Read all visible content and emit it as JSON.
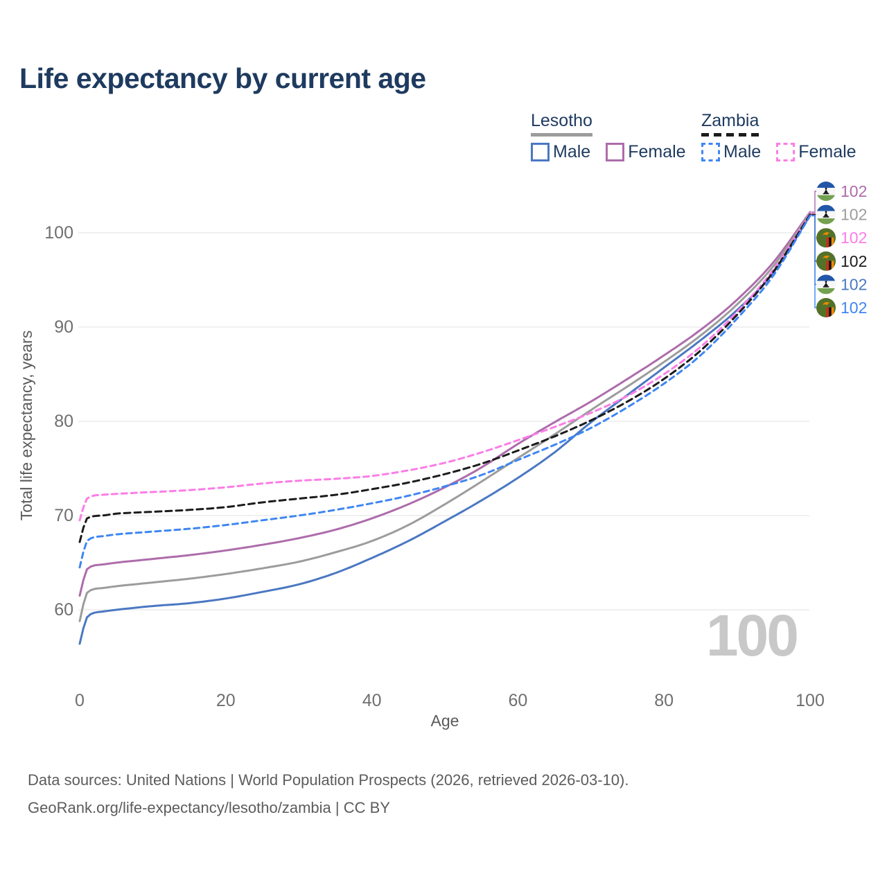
{
  "title": "Life expectancy by current age",
  "legend": {
    "groups": [
      {
        "country": "Lesotho",
        "line_style": "solid",
        "underline_color": "#9c9c9c",
        "items": [
          {
            "label": "Male",
            "color": "#4a78c2"
          },
          {
            "label": "Female",
            "color": "#ad6cab"
          }
        ]
      },
      {
        "country": "Zambia",
        "line_style": "dashed",
        "underline_color": "#1c1c1c",
        "items": [
          {
            "label": "Male",
            "color": "#3f86f2"
          },
          {
            "label": "Female",
            "color": "#fb7de6"
          }
        ]
      }
    ]
  },
  "frame_counter": "100",
  "footer": {
    "line1": "Data sources: United Nations | World Population Prospects (2026, retrieved 2026-03-10).",
    "line2": "GeoRank.org/life-expectancy/lesotho/zambia | CC BY"
  },
  "colors": {
    "title_text": "#1e3a5f",
    "legend_text": "#1e3a5f",
    "tick_text": "#6f6f6f",
    "axis_title_text": "#5a5a5a",
    "grid": "#e7e7e7",
    "watermark": "#c8c8c8",
    "footer_text": "#5c5c5c"
  },
  "chart_data": {
    "type": "line",
    "title": "Life expectancy by current age",
    "xlabel": "Age",
    "ylabel": "Total life expectancy, years",
    "x_ticks": [
      0,
      20,
      40,
      60,
      80,
      100
    ],
    "y_ticks": [
      60,
      70,
      80,
      90,
      100
    ],
    "xlim": [
      0,
      100
    ],
    "ylim": [
      55.5,
      103.5
    ],
    "grid": "horizontal-only",
    "legend_position": "top-right",
    "ages": [
      0,
      1,
      3,
      5,
      10,
      15,
      20,
      25,
      30,
      35,
      40,
      45,
      50,
      55,
      60,
      65,
      70,
      75,
      80,
      85,
      90,
      95,
      100
    ],
    "series": [
      {
        "name": "Lesotho Female",
        "country": "Lesotho",
        "sex": "Female",
        "color": "#ad6cab",
        "dash": "solid",
        "flag": "lesotho",
        "end_label": "102",
        "values": [
          61.5,
          64.3,
          64.8,
          65.0,
          65.4,
          65.8,
          66.3,
          66.9,
          67.6,
          68.5,
          69.7,
          71.2,
          73.0,
          75.1,
          77.6,
          79.9,
          82.1,
          84.5,
          87.0,
          89.7,
          92.9,
          96.9,
          102.2
        ]
      },
      {
        "name": "Lesotho Both sexes",
        "country": "Lesotho",
        "sex": "Both",
        "color": "#9c9c9c",
        "dash": "solid",
        "flag": "lesotho",
        "end_label": "102",
        "values": [
          58.8,
          61.8,
          62.3,
          62.5,
          62.9,
          63.3,
          63.8,
          64.4,
          65.1,
          66.1,
          67.3,
          69.0,
          71.2,
          73.6,
          76.1,
          78.6,
          81.2,
          83.7,
          86.3,
          89.1,
          92.4,
          96.5,
          102.1
        ]
      },
      {
        "name": "Zambia Female",
        "country": "Zambia",
        "sex": "Female",
        "color": "#fb7de6",
        "dash": "dashed",
        "flag": "zambia",
        "end_label": "102",
        "values": [
          69.5,
          71.8,
          72.2,
          72.3,
          72.5,
          72.7,
          73.0,
          73.4,
          73.7,
          73.9,
          74.2,
          74.8,
          75.6,
          76.7,
          78.0,
          79.4,
          80.9,
          82.7,
          85.0,
          87.9,
          91.6,
          96.1,
          102.05
        ]
      },
      {
        "name": "Zambia Both sexes",
        "country": "Zambia",
        "sex": "Both",
        "color": "#1c1c1c",
        "dash": "dashed",
        "flag": "zambia",
        "end_label": "102",
        "values": [
          67.2,
          69.7,
          70.0,
          70.2,
          70.4,
          70.6,
          70.9,
          71.4,
          71.8,
          72.2,
          72.8,
          73.5,
          74.4,
          75.5,
          76.9,
          78.4,
          80.1,
          82.1,
          84.5,
          87.5,
          91.3,
          95.9,
          101.95
        ]
      },
      {
        "name": "Lesotho Male",
        "country": "Lesotho",
        "sex": "Male",
        "color": "#4a78c2",
        "dash": "solid",
        "flag": "lesotho",
        "end_label": "102",
        "values": [
          56.4,
          59.2,
          59.8,
          60.0,
          60.4,
          60.7,
          61.2,
          61.9,
          62.7,
          63.9,
          65.5,
          67.3,
          69.4,
          71.6,
          74.0,
          76.7,
          79.9,
          82.8,
          85.7,
          88.6,
          91.8,
          95.8,
          101.85
        ]
      },
      {
        "name": "Zambia Male",
        "country": "Zambia",
        "sex": "Male",
        "color": "#3f86f2",
        "dash": "dashed",
        "flag": "zambia",
        "end_label": "102",
        "values": [
          64.5,
          67.3,
          67.8,
          68.0,
          68.3,
          68.6,
          69.0,
          69.5,
          70.0,
          70.6,
          71.3,
          72.1,
          73.1,
          74.3,
          75.9,
          77.5,
          79.3,
          81.5,
          84.0,
          87.0,
          90.9,
          95.5,
          101.8
        ]
      }
    ]
  }
}
